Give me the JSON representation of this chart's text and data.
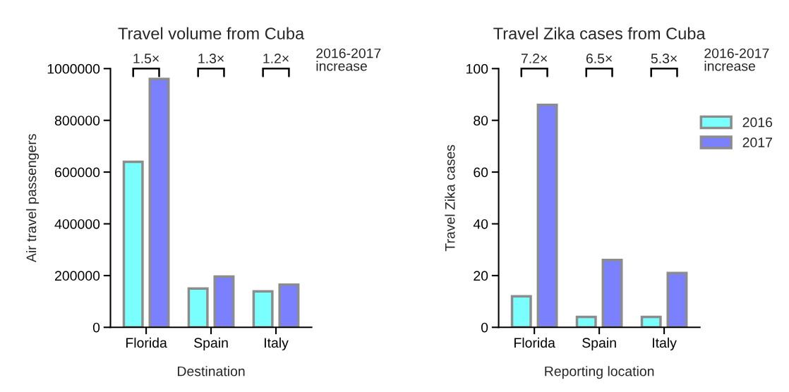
{
  "chart_data": [
    {
      "type": "bar",
      "title": "Travel volume from Cuba",
      "xlabel": "Destination",
      "ylabel": "Air travel passengers",
      "categories": [
        "Florida",
        "Spain",
        "Italy"
      ],
      "series": [
        {
          "name": "2016",
          "color": "#7affff",
          "values": [
            640000,
            150000,
            139000
          ]
        },
        {
          "name": "2017",
          "color": "#7b80ff",
          "values": [
            960000,
            196000,
            165000
          ]
        }
      ],
      "ylim": [
        0,
        1000000
      ],
      "yticks": [
        0,
        200000,
        400000,
        600000,
        800000,
        1000000
      ],
      "grid": false,
      "legend": "right",
      "annotations": [
        "1.5×",
        "1.3×",
        "1.2×",
        "2016-2017\nincrease"
      ]
    },
    {
      "type": "bar",
      "title": "Travel Zika cases from Cuba",
      "xlabel": "Reporting location",
      "ylabel": "Travel Zika cases",
      "categories": [
        "Florida",
        "Spain",
        "Italy"
      ],
      "series": [
        {
          "name": "2016",
          "color": "#7affff",
          "values": [
            12,
            4,
            4
          ]
        },
        {
          "name": "2017",
          "color": "#7b80ff",
          "values": [
            86,
            26,
            21
          ]
        }
      ],
      "ylim": [
        0,
        100
      ],
      "yticks": [
        0,
        20,
        40,
        60,
        80,
        100
      ],
      "grid": false,
      "legend": "right",
      "annotations": [
        "7.2×",
        "6.5×",
        "5.3×",
        "2016-2017\nincrease"
      ]
    }
  ]
}
